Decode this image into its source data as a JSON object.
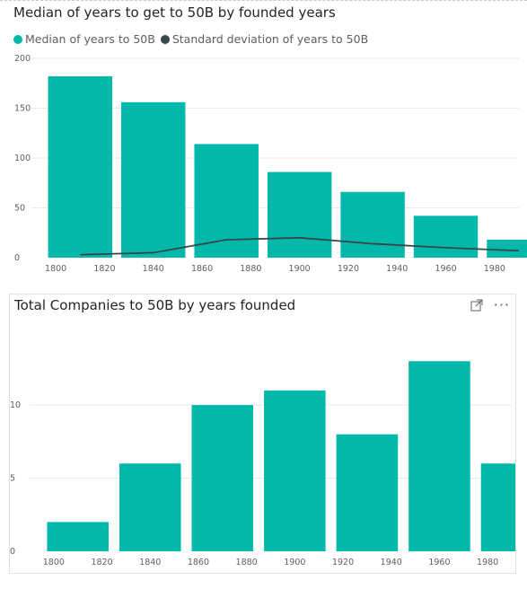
{
  "charts": [
    {
      "title": "Median of years to get to 50B by founded years",
      "legend": [
        {
          "label": "Median of years to 50B",
          "color": "#01b8aa"
        },
        {
          "label": "Standard deviation of years to 50B",
          "color": "#374649"
        }
      ]
    },
    {
      "title": "Total Companies to 50B by years founded"
    }
  ],
  "chart_data": [
    {
      "type": "bar",
      "title": "Median of years to get to 50B by founded years",
      "x_ticks": [
        "1800",
        "1820",
        "1840",
        "1860",
        "1880",
        "1900",
        "1920",
        "1940",
        "1960",
        "1980"
      ],
      "x_range": [
        1790,
        1990
      ],
      "bin_start": [
        1800,
        1830,
        1860,
        1890,
        1920,
        1950,
        1980
      ],
      "bin_width": 30,
      "series": [
        {
          "name": "Median of years to 50B",
          "type": "bar",
          "color": "#01b8aa",
          "values": [
            182,
            156,
            114,
            86,
            66,
            42,
            18
          ]
        },
        {
          "name": "Standard deviation of years to 50B",
          "type": "line",
          "color": "#374649",
          "values": [
            3,
            5,
            18,
            20,
            14,
            10,
            7
          ]
        }
      ],
      "ylim": [
        0,
        200
      ],
      "y_ticks": [
        0,
        50,
        100,
        150,
        200
      ],
      "grid": true,
      "legend_position": "top-left"
    },
    {
      "type": "bar",
      "title": "Total Companies to 50B by years founded",
      "x_ticks": [
        "1800",
        "1820",
        "1840",
        "1860",
        "1880",
        "1900",
        "1920",
        "1940",
        "1960",
        "1980"
      ],
      "x_range": [
        1790,
        1990
      ],
      "bin_start": [
        1800,
        1830,
        1860,
        1890,
        1920,
        1950,
        1980
      ],
      "bin_width": 30,
      "series": [
        {
          "color": "#01b8aa",
          "values": [
            2,
            6,
            10,
            11,
            8,
            13,
            6
          ]
        }
      ],
      "ylim": [
        0,
        14
      ],
      "y_ticks": [
        0,
        5,
        10
      ],
      "grid": true
    }
  ]
}
